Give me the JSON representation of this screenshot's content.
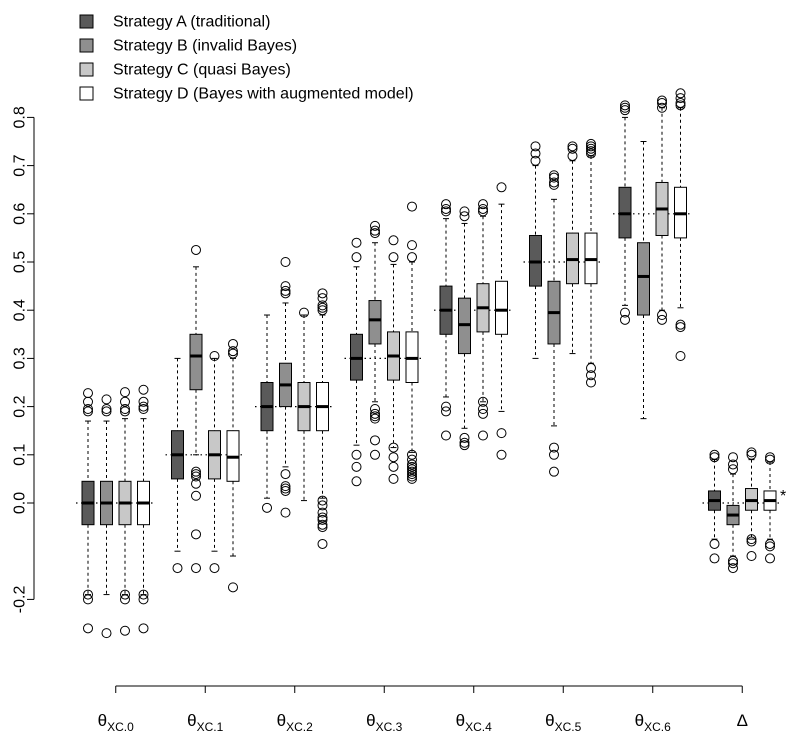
{
  "chart_data": {
    "type": "boxplot",
    "title": "",
    "xlabel": "",
    "ylabel": "",
    "ylim": [
      -0.27,
      0.86
    ],
    "y_ticks": [
      "-0.2",
      "0.0",
      "0.1",
      "0.2",
      "0.3",
      "0.4",
      "0.5",
      "0.6",
      "0.7",
      "0.8"
    ],
    "y_tick_values": [
      -0.2,
      0.0,
      0.1,
      0.2,
      0.3,
      0.4,
      0.5,
      0.6,
      0.7,
      0.8
    ],
    "grid": false,
    "legend_position": "top-left",
    "categories": [
      {
        "base": "θ",
        "sub": "XC.0"
      },
      {
        "base": "θ",
        "sub": "XC.1"
      },
      {
        "base": "θ",
        "sub": "XC.2"
      },
      {
        "base": "θ",
        "sub": "XC.3"
      },
      {
        "base": "θ",
        "sub": "XC.4"
      },
      {
        "base": "θ",
        "sub": "XC.5"
      },
      {
        "base": "θ",
        "sub": "XC.6"
      },
      {
        "base": "Δ",
        "sub": ""
      }
    ],
    "reference_values": [
      0.0,
      0.1,
      0.2,
      0.3,
      0.4,
      0.5,
      0.6,
      0.0
    ],
    "star_annotation": "*",
    "series": [
      {
        "name": "Strategy A (traditional)",
        "color": "#5a5a5a",
        "boxes": [
          {
            "lo": -0.19,
            "q1": -0.045,
            "med": 0.0,
            "q3": 0.045,
            "hi": 0.17,
            "outliers": [
              0.228,
              0.21,
              0.195,
              0.19,
              -0.19,
              -0.2,
              -0.26
            ]
          },
          {
            "lo": -0.1,
            "q1": 0.05,
            "med": 0.1,
            "q3": 0.15,
            "hi": 0.3,
            "outliers": [
              -0.135
            ]
          },
          {
            "lo": 0.01,
            "q1": 0.15,
            "med": 0.2,
            "q3": 0.25,
            "hi": 0.39,
            "outliers": [
              -0.01
            ]
          },
          {
            "lo": 0.12,
            "q1": 0.255,
            "med": 0.3,
            "q3": 0.35,
            "hi": 0.49,
            "outliers": [
              0.54,
              0.51,
              0.1,
              0.075,
              0.045
            ]
          },
          {
            "lo": 0.22,
            "q1": 0.35,
            "med": 0.4,
            "q3": 0.45,
            "hi": 0.59,
            "outliers": [
              0.62,
              0.61,
              0.605,
              0.2,
              0.19,
              0.14
            ]
          },
          {
            "lo": 0.3,
            "q1": 0.45,
            "med": 0.5,
            "q3": 0.555,
            "hi": 0.7,
            "outliers": [
              0.74,
              0.725,
              0.71
            ]
          },
          {
            "lo": 0.41,
            "q1": 0.55,
            "med": 0.6,
            "q3": 0.655,
            "hi": 0.8,
            "outliers": [
              0.825,
              0.82,
              0.815,
              0.395,
              0.38
            ]
          },
          {
            "lo": -0.075,
            "q1": -0.015,
            "med": 0.005,
            "q3": 0.025,
            "hi": 0.09,
            "outliers": [
              0.1,
              0.095,
              -0.085,
              -0.115
            ]
          }
        ]
      },
      {
        "name": "Strategy B (invalid Bayes)",
        "color": "#8f8f8f",
        "boxes": [
          {
            "lo": -0.19,
            "q1": -0.045,
            "med": 0.0,
            "q3": 0.045,
            "hi": 0.17,
            "outliers": [
              0.215,
              0.195,
              0.19,
              -0.27
            ]
          },
          {
            "lo": 0.1,
            "q1": 0.235,
            "med": 0.305,
            "q3": 0.35,
            "hi": 0.49,
            "outliers": [
              0.525,
              0.065,
              0.06,
              0.055,
              0.04,
              0.015,
              -0.065,
              -0.135
            ]
          },
          {
            "lo": 0.075,
            "q1": 0.2,
            "med": 0.245,
            "q3": 0.29,
            "hi": 0.415,
            "outliers": [
              0.5,
              0.45,
              0.44,
              0.435,
              0.06,
              0.035,
              0.03,
              0.025,
              -0.02
            ]
          },
          {
            "lo": 0.21,
            "q1": 0.33,
            "med": 0.38,
            "q3": 0.42,
            "hi": 0.54,
            "outliers": [
              0.575,
              0.565,
              0.56,
              0.195,
              0.185,
              0.18,
              0.175,
              0.13,
              0.1
            ]
          },
          {
            "lo": 0.155,
            "q1": 0.31,
            "med": 0.37,
            "q3": 0.425,
            "hi": 0.58,
            "outliers": [
              0.605,
              0.595,
              0.135,
              0.125,
              0.12
            ]
          },
          {
            "lo": 0.16,
            "q1": 0.33,
            "med": 0.395,
            "q3": 0.46,
            "hi": 0.63,
            "outliers": [
              0.68,
              0.675,
              0.665,
              0.66,
              0.115,
              0.1,
              0.065
            ]
          },
          {
            "lo": 0.175,
            "q1": 0.39,
            "med": 0.47,
            "q3": 0.54,
            "hi": 0.75,
            "outliers": []
          },
          {
            "lo": -0.11,
            "q1": -0.045,
            "med": -0.025,
            "q3": -0.005,
            "hi": 0.06,
            "outliers": [
              0.095,
              0.08,
              0.07,
              -0.12,
              -0.125,
              -0.135
            ]
          }
        ]
      },
      {
        "name": "Strategy C (quasi Bayes)",
        "color": "#c8c8c8",
        "boxes": [
          {
            "lo": -0.19,
            "q1": -0.045,
            "med": 0.0,
            "q3": 0.045,
            "hi": 0.175,
            "outliers": [
              0.23,
              0.21,
              0.195,
              0.19,
              -0.19,
              -0.2,
              -0.265
            ]
          },
          {
            "lo": -0.1,
            "q1": 0.05,
            "med": 0.1,
            "q3": 0.15,
            "hi": 0.3,
            "outliers": [
              0.305,
              -0.135
            ]
          },
          {
            "lo": 0.005,
            "q1": 0.15,
            "med": 0.2,
            "q3": 0.25,
            "hi": 0.39,
            "outliers": [
              0.395
            ]
          },
          {
            "lo": 0.115,
            "q1": 0.255,
            "med": 0.305,
            "q3": 0.355,
            "hi": 0.495,
            "outliers": [
              0.545,
              0.51,
              0.115,
              0.095,
              0.075,
              0.05
            ]
          },
          {
            "lo": 0.21,
            "q1": 0.355,
            "med": 0.405,
            "q3": 0.455,
            "hi": 0.595,
            "outliers": [
              0.62,
              0.61,
              0.605,
              0.21,
              0.195,
              0.185,
              0.14
            ]
          },
          {
            "lo": 0.31,
            "q1": 0.455,
            "med": 0.505,
            "q3": 0.56,
            "hi": 0.71,
            "outliers": [
              0.74,
              0.735,
              0.72
            ]
          },
          {
            "lo": 0.4,
            "q1": 0.555,
            "med": 0.61,
            "q3": 0.665,
            "hi": 0.82,
            "outliers": [
              0.835,
              0.83,
              0.82,
              0.39,
              0.38
            ]
          },
          {
            "lo": -0.075,
            "q1": -0.015,
            "med": 0.005,
            "q3": 0.03,
            "hi": 0.09,
            "outliers": [
              0.105,
              0.1,
              -0.075,
              -0.08,
              -0.11
            ]
          }
        ]
      },
      {
        "name": "Strategy D (Bayes with augmented model)",
        "color": "#ffffff",
        "boxes": [
          {
            "lo": -0.19,
            "q1": -0.045,
            "med": 0.0,
            "q3": 0.045,
            "hi": 0.175,
            "outliers": [
              0.235,
              0.21,
              0.2,
              0.195,
              -0.19,
              -0.2,
              -0.26
            ]
          },
          {
            "lo": -0.11,
            "q1": 0.045,
            "med": 0.095,
            "q3": 0.15,
            "hi": 0.3,
            "outliers": [
              0.33,
              0.315,
              0.31,
              -0.175
            ]
          },
          {
            "lo": 0.01,
            "q1": 0.15,
            "med": 0.2,
            "q3": 0.25,
            "hi": 0.39,
            "outliers": [
              0.435,
              0.425,
              0.41,
              0.405,
              0.4,
              0.005,
              -0.005,
              -0.02,
              -0.03,
              -0.035,
              -0.045,
              -0.05,
              -0.085
            ]
          },
          {
            "lo": 0.105,
            "q1": 0.25,
            "med": 0.3,
            "q3": 0.355,
            "hi": 0.5,
            "outliers": [
              0.615,
              0.535,
              0.51,
              0.1,
              0.09,
              0.08,
              0.075,
              0.07,
              0.065,
              0.06,
              0.055,
              0.05
            ]
          },
          {
            "lo": 0.19,
            "q1": 0.35,
            "med": 0.4,
            "q3": 0.46,
            "hi": 0.62,
            "outliers": [
              0.655,
              0.145,
              0.1
            ]
          },
          {
            "lo": 0.29,
            "q1": 0.455,
            "med": 0.505,
            "q3": 0.56,
            "hi": 0.72,
            "outliers": [
              0.745,
              0.74,
              0.735,
              0.73,
              0.725,
              0.28,
              0.265,
              0.25
            ]
          },
          {
            "lo": 0.405,
            "q1": 0.55,
            "med": 0.6,
            "q3": 0.655,
            "hi": 0.82,
            "outliers": [
              0.85,
              0.84,
              0.83,
              0.825,
              0.37,
              0.365,
              0.305
            ]
          },
          {
            "lo": -0.075,
            "q1": -0.015,
            "med": 0.005,
            "q3": 0.025,
            "hi": 0.085,
            "outliers": [
              0.095,
              0.09,
              -0.085,
              -0.09,
              -0.115
            ]
          }
        ]
      }
    ]
  }
}
